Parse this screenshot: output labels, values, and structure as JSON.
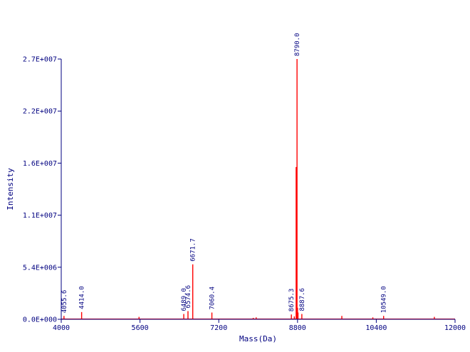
{
  "chart_data": {
    "type": "line",
    "title": "",
    "xlabel": "Mass(Da)",
    "ylabel": "Intensity",
    "xlim": [
      4000,
      12000
    ],
    "ylim": [
      0,
      27000000
    ],
    "x_ticks": [
      4000,
      5600,
      7200,
      8800,
      10400,
      12000
    ],
    "x_tick_labels": [
      "4000",
      "5600",
      "7200",
      "8800",
      "10400",
      "12000"
    ],
    "y_ticks": [
      0,
      5400000,
      10800000,
      16200000,
      21600000,
      27000000
    ],
    "y_tick_labels": [
      "0.0E+000",
      "5.4E+006",
      "1.1E+007",
      "1.6E+007",
      "2.2E+007",
      "2.7E+007"
    ],
    "grid": false,
    "colors": {
      "axis": "#000080",
      "spectrum": "#ff0000",
      "labels": "#000080"
    },
    "series": [
      {
        "values": [
          [
            4055.6,
            350000
          ],
          [
            4414.0,
            750000
          ],
          [
            5580,
            250000
          ],
          [
            6489.0,
            550000
          ],
          [
            6574.6,
            850000
          ],
          [
            6671.7,
            5700000
          ],
          [
            7060.4,
            700000
          ],
          [
            7900,
            150000
          ],
          [
            7960,
            200000
          ],
          [
            8675.3,
            500000
          ],
          [
            8735,
            300000
          ],
          [
            8772,
            15800000
          ],
          [
            8778,
            11000000
          ],
          [
            8790.0,
            27000000
          ],
          [
            8800,
            1200000
          ],
          [
            8810,
            700000
          ],
          [
            8887.6,
            550000
          ],
          [
            9700,
            350000
          ],
          [
            10330,
            200000
          ],
          [
            10549.0,
            350000
          ],
          [
            11580,
            250000
          ]
        ]
      }
    ],
    "peak_labels": [
      {
        "x": 4055.6,
        "y": 350000,
        "text": "4055.6"
      },
      {
        "x": 4414.0,
        "y": 750000,
        "text": "4414.0"
      },
      {
        "x": 6489.0,
        "y": 550000,
        "text": "6489.0"
      },
      {
        "x": 6574.6,
        "y": 850000,
        "text": "6574.6"
      },
      {
        "x": 6671.7,
        "y": 5700000,
        "text": "6671.7"
      },
      {
        "x": 7060.4,
        "y": 700000,
        "text": "7060.4"
      },
      {
        "x": 8675.3,
        "y": 500000,
        "text": "8675.3"
      },
      {
        "x": 8790.0,
        "y": 27000000,
        "text": "8790.0"
      },
      {
        "x": 8887.6,
        "y": 550000,
        "text": "8887.6"
      },
      {
        "x": 10549.0,
        "y": 350000,
        "text": "10549.0"
      }
    ]
  }
}
